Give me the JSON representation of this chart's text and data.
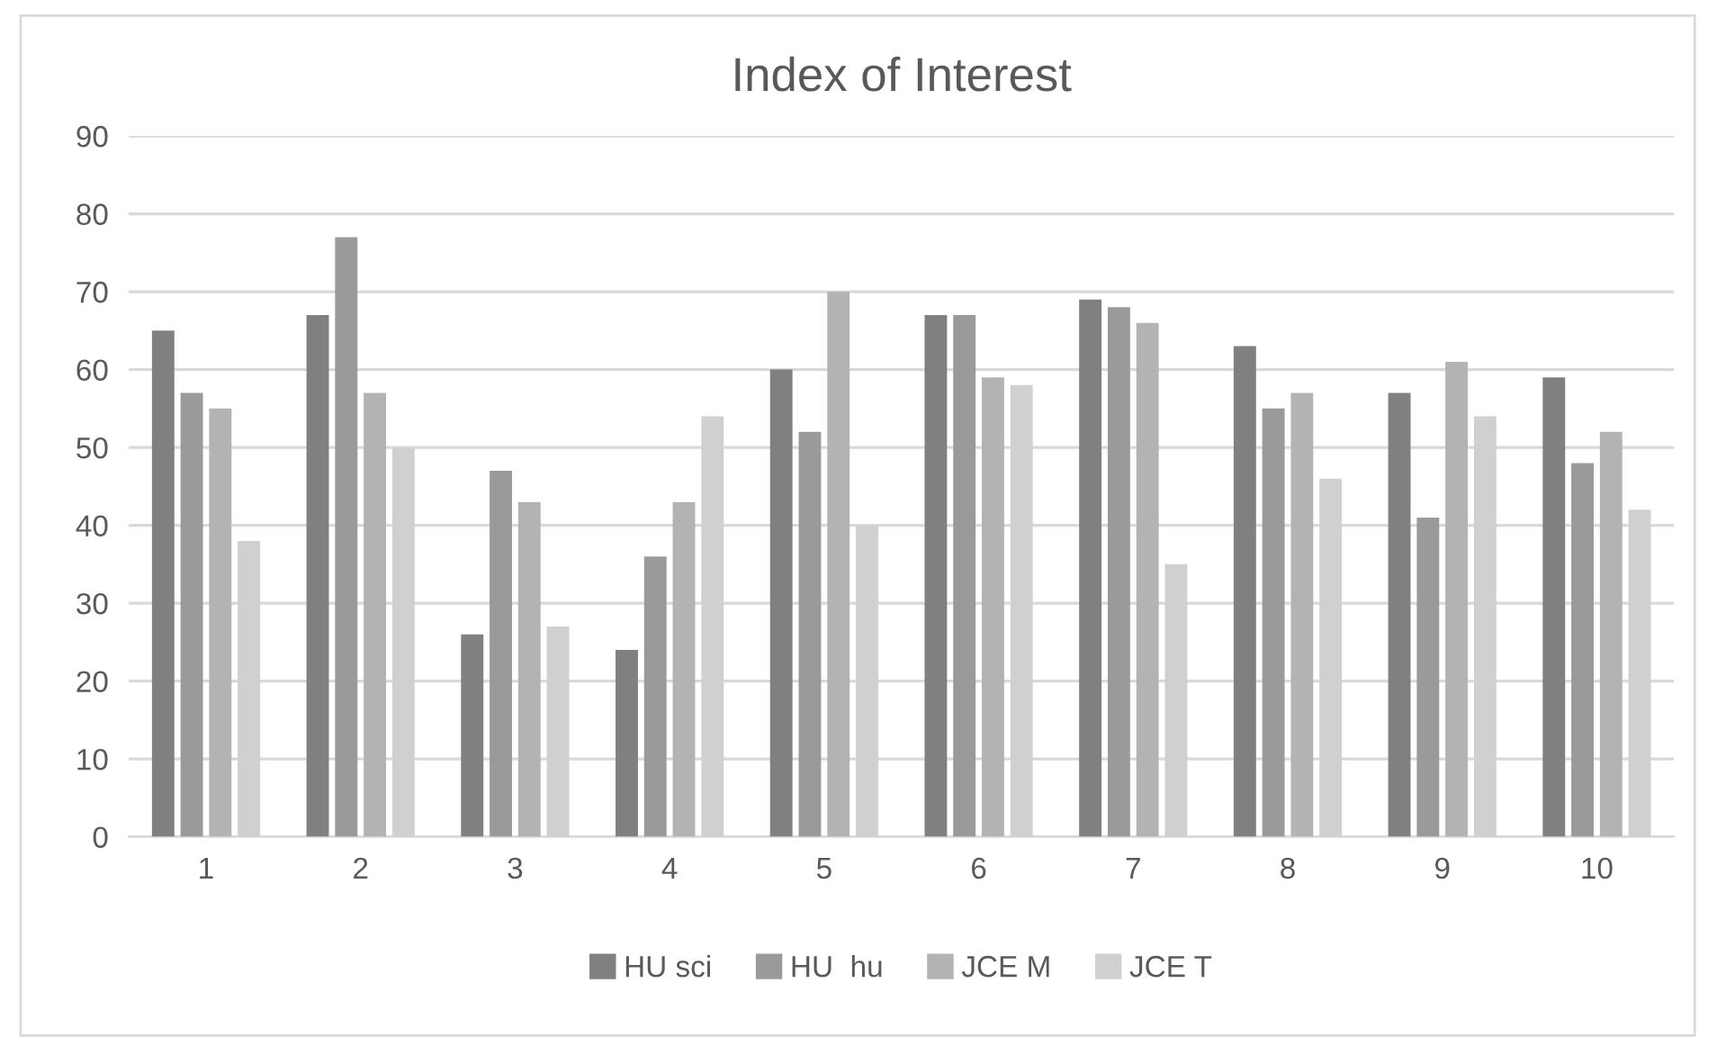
{
  "chart_data": {
    "type": "bar",
    "title": "Index of Interest",
    "categories": [
      "1",
      "2",
      "3",
      "4",
      "5",
      "6",
      "7",
      "8",
      "9",
      "10"
    ],
    "series": [
      {
        "name": "HU sci",
        "color": "#808080",
        "values": [
          65,
          67,
          26,
          24,
          60,
          67,
          69,
          63,
          57,
          59
        ]
      },
      {
        "name": "HU  hu",
        "color": "#9a9a9a",
        "values": [
          57,
          77,
          47,
          36,
          52,
          67,
          68,
          55,
          41,
          48
        ]
      },
      {
        "name": "JCE M",
        "color": "#b3b3b3",
        "values": [
          55,
          57,
          43,
          43,
          70,
          59,
          66,
          57,
          61,
          52
        ]
      },
      {
        "name": "JCE T",
        "color": "#d0d0d0",
        "values": [
          38,
          50,
          27,
          54,
          40,
          58,
          35,
          46,
          54,
          42
        ]
      }
    ],
    "ylim": [
      0,
      90
    ],
    "yticks": [
      0,
      10,
      20,
      30,
      40,
      50,
      60,
      70,
      80,
      90
    ],
    "grid": "y",
    "legend": "bottom"
  }
}
